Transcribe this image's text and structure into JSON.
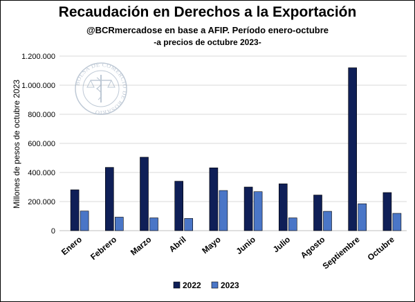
{
  "title": "Recaudación en Derechos a la Exportación",
  "subtitle": "@BCRmercadose en base a AFIP. Período enero-octubre",
  "subtitle2": "-a precios de octubre 2023-",
  "logo_text": "BOLSA DE COMERCIO DE ROSARIO",
  "colors": {
    "series_2022": "#0f1f57",
    "series_2023": "#4a76c7",
    "grid": "#d9d9d9",
    "axis": "#bfbfbf"
  },
  "chart_data": {
    "type": "bar",
    "categories": [
      "Enero",
      "Febrero",
      "Marzo",
      "Abril",
      "Mayo",
      "Junio",
      "Julio",
      "Agosto",
      "Septiembre",
      "Octubre"
    ],
    "series": [
      {
        "name": "2022",
        "values": [
          281000,
          435000,
          505000,
          340000,
          432000,
          300000,
          322000,
          245000,
          1120000,
          262000
        ]
      },
      {
        "name": "2023",
        "values": [
          135000,
          93000,
          88000,
          84000,
          276000,
          268000,
          88000,
          133000,
          185000,
          119000
        ]
      }
    ],
    "ylabel": "Millones de pesos de octubre 2023",
    "xlabel": "",
    "ylim": [
      0,
      1200000
    ],
    "yticks": [
      0,
      200000,
      400000,
      600000,
      800000,
      1000000,
      1200000
    ],
    "ytick_labels": [
      "0",
      "200.000",
      "400.000",
      "600.000",
      "800.000",
      "1.000.000",
      "1.200.000"
    ],
    "grid": true,
    "legend_position": "bottom"
  }
}
